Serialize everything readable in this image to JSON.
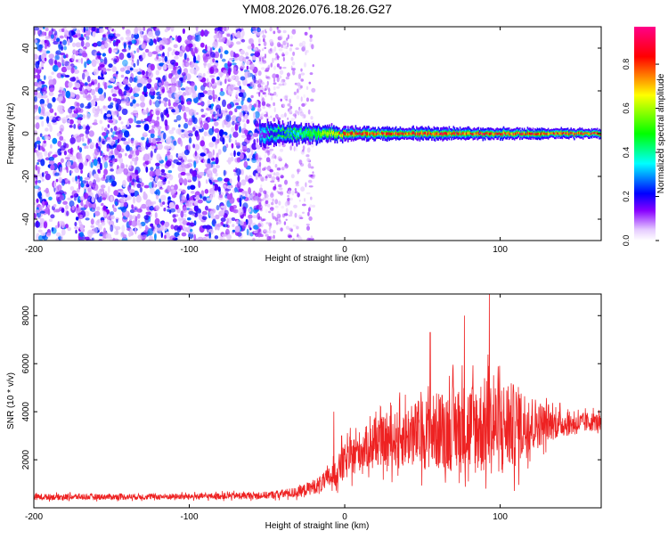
{
  "chart_data": [
    {
      "type": "heatmap",
      "title": "YM08.2026.076.18.26.G27",
      "xlabel": "Height of straight line (km)",
      "ylabel": "Frequency (Hz)",
      "xlim": [
        -200,
        165
      ],
      "ylim": [
        -50,
        50
      ],
      "xticks": [
        -200,
        -100,
        0,
        100
      ],
      "xtick_labels": [
        "-200",
        "-100",
        "0",
        "100"
      ],
      "yticks": [
        -40,
        -20,
        0,
        20,
        40
      ],
      "ytick_labels": [
        "-40",
        "-20",
        "0",
        "20",
        "40"
      ],
      "colorbar": {
        "label": "Normalized spectral amplitude",
        "range": [
          0,
          0.97
        ],
        "ticks": [
          0,
          0.2,
          0.4,
          0.6,
          0.8
        ],
        "tick_labels": [
          "0.0",
          "0.2",
          "0.4",
          "0.6",
          "0.8"
        ],
        "colors": [
          "#ffffff",
          "#8800ff",
          "#0000ff",
          "#00ffff",
          "#00ff00",
          "#ffff00",
          "#ff0000",
          "#ff0088"
        ]
      },
      "noise_region": {
        "x": [
          -200,
          -55
        ],
        "amplitude": [
          0.05,
          0.3
        ]
      },
      "sparse_noise_region": {
        "x": [
          -55,
          -20
        ],
        "amplitude": [
          0.03,
          0.15
        ]
      },
      "signal_band": {
        "x_start": -55,
        "x_end": 165,
        "center_frequency": 0,
        "halfwidth_hz": [
          5,
          3,
          2
        ],
        "halfwidth_x": [
          -55,
          0,
          165
        ],
        "peak_amplitude": [
          0.35,
          0.9,
          0.95
        ]
      }
    },
    {
      "type": "line",
      "title": "",
      "xlabel": "Height of straight line (km)",
      "ylabel": "SNR (10 * v/v)",
      "xlim": [
        -200,
        165
      ],
      "ylim": [
        0,
        8900
      ],
      "xticks": [
        -200,
        -100,
        0,
        100
      ],
      "xtick_labels": [
        "-200",
        "-100",
        "0",
        "100"
      ],
      "yticks": [
        2000,
        4000,
        6000,
        8000
      ],
      "ytick_labels": [
        "2000",
        "4000",
        "6000",
        "8000"
      ],
      "line_color": "#ee2222",
      "envelope": {
        "x": [
          -200,
          -100,
          -50,
          -30,
          -15,
          -5,
          0,
          10,
          20,
          30,
          40,
          50,
          60,
          70,
          80,
          90,
          100,
          110,
          120,
          130,
          140,
          150,
          160,
          165
        ],
        "mean": [
          450,
          470,
          520,
          650,
          1000,
          1500,
          1900,
          2400,
          2700,
          2800,
          3000,
          3100,
          3200,
          3300,
          3300,
          3400,
          3400,
          3400,
          3500,
          3500,
          3500,
          3500,
          3600,
          3500
        ],
        "spread": [
          250,
          250,
          300,
          450,
          700,
          1200,
          1500,
          1700,
          1900,
          2200,
          2600,
          3000,
          3300,
          3600,
          3900,
          4100,
          4000,
          3500,
          2500,
          1500,
          1100,
          900,
          800,
          700
        ]
      },
      "spikes": [
        {
          "x": 93,
          "y": 8900
        },
        {
          "x": 77,
          "y": 8000
        },
        {
          "x": 55,
          "y": 7300
        },
        {
          "x": -7,
          "y": 4000
        },
        {
          "x": -2,
          "y": 3000
        }
      ],
      "samples": 2000
    }
  ]
}
